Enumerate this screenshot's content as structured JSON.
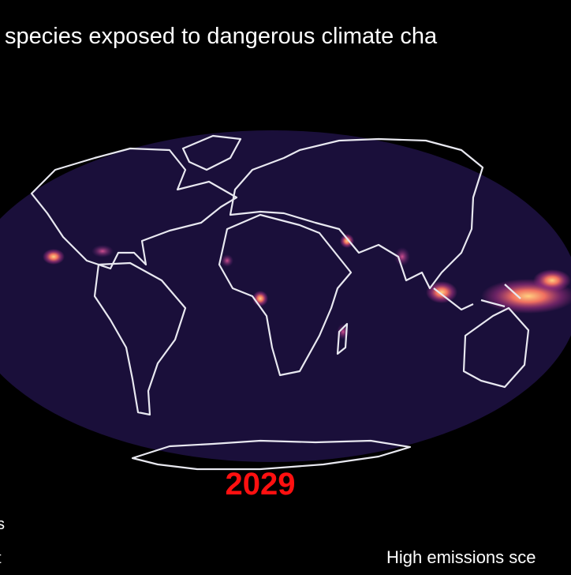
{
  "title": "species exposed to dangerous climate cha",
  "year": "2029",
  "scenario": "High emissions sce",
  "left_fragments": [
    "s",
    "t"
  ]
}
